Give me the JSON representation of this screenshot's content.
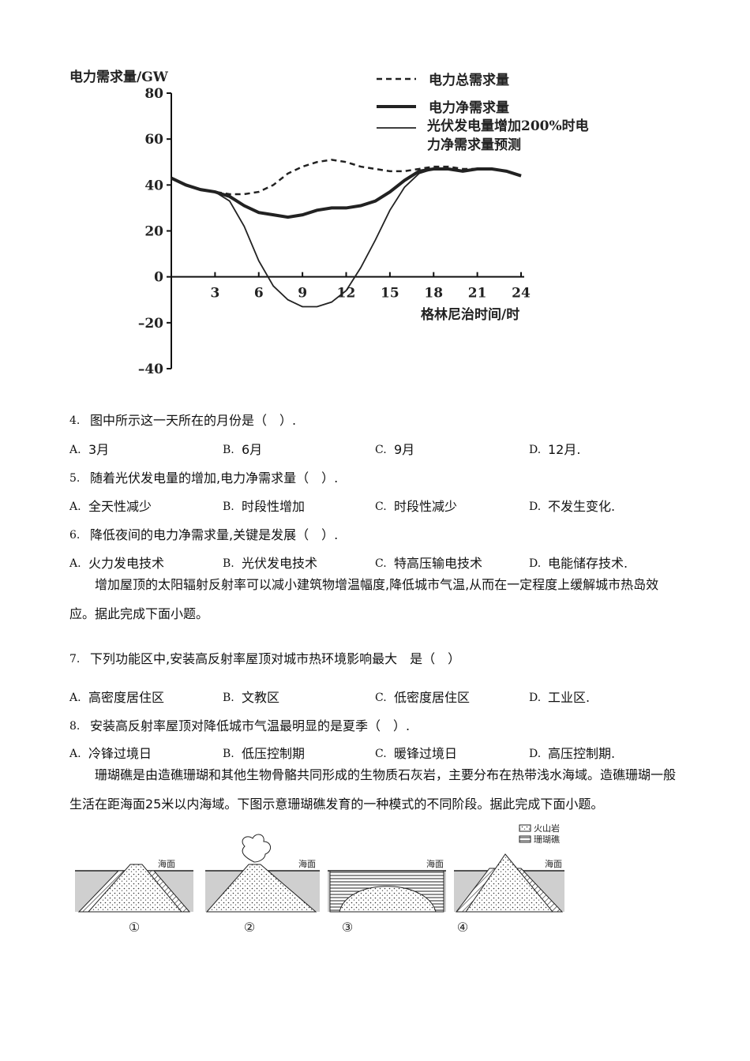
{
  "chart_data": {
    "type": "line",
    "y_label": "电力需求量/GW",
    "x_label": "格林尼治时间/时",
    "x": [
      0,
      1,
      2,
      3,
      4,
      5,
      6,
      7,
      8,
      9,
      10,
      11,
      12,
      13,
      14,
      15,
      16,
      17,
      18,
      19,
      20,
      21,
      22,
      23,
      24
    ],
    "xlim": [
      0,
      24
    ],
    "xticks": [
      3,
      6,
      9,
      12,
      15,
      18,
      21,
      24
    ],
    "ylim": [
      -40,
      80
    ],
    "yticks": [
      80,
      60,
      40,
      20,
      0,
      {
        "value": -20,
        "label": "–20"
      },
      {
        "value": -40,
        "label": "–40"
      }
    ],
    "series": [
      {
        "name": "电力总需求量",
        "color": "#222222",
        "style": "dashed",
        "values": [
          43,
          40,
          38,
          37,
          36,
          36,
          37,
          40,
          45,
          48,
          50,
          51,
          50,
          48,
          47,
          46,
          46,
          47,
          48,
          48,
          47,
          47,
          47,
          46,
          44
        ]
      },
      {
        "name": "电力净需求量",
        "color": "#222222",
        "style": "thick",
        "values": [
          43,
          40,
          38,
          37,
          35,
          31,
          28,
          27,
          26,
          27,
          29,
          30,
          30,
          31,
          33,
          37,
          42,
          46,
          47,
          47,
          46,
          47,
          47,
          46,
          44
        ]
      },
      {
        "name": "光伏发电量增加200%时电力净需求量预测",
        "color": "#222222",
        "style": "thin",
        "values": [
          43,
          40,
          38,
          37,
          33,
          22,
          7,
          -4,
          -10,
          -13,
          -13,
          -11,
          -6,
          4,
          16,
          29,
          39,
          45,
          47,
          47,
          46,
          47,
          47,
          46,
          44
        ]
      }
    ]
  },
  "questions": [
    {
      "number": "4.",
      "stem": "图中所示这一天所在的月份是（　）.",
      "options": [
        {
          "letter": "A.",
          "text": "3月"
        },
        {
          "letter": "B.",
          "text": "6月"
        },
        {
          "letter": "C.",
          "text": "9月"
        },
        {
          "letter": "D.",
          "text": "12月."
        }
      ]
    },
    {
      "number": "5.",
      "stem": "随着光伏发电量的增加,电力净需求量（　）.",
      "options": [
        {
          "letter": "A.",
          "text": "全天性减少"
        },
        {
          "letter": "B.",
          "text": "时段性增加"
        },
        {
          "letter": "C.",
          "text": "时段性减少"
        },
        {
          "letter": "D.",
          "text": "不发生变化."
        }
      ]
    },
    {
      "number": "6.",
      "stem": "降低夜间的电力净需求量,关键是发展（　）.",
      "options": [
        {
          "letter": "A.",
          "text": "火力发电技术"
        },
        {
          "letter": "B.",
          "text": "光伏发电技术"
        },
        {
          "letter": "C.",
          "text": "特高压输电技术"
        },
        {
          "letter": "D.",
          "text": "电能储存技术."
        }
      ]
    },
    {
      "number": "7.",
      "stem": "下列功能区中,安装高反射率屋顶对城市热环境影响最大　是（　）",
      "options": [
        {
          "letter": "A.",
          "text": "高密度居住区"
        },
        {
          "letter": "B.",
          "text": "文教区"
        },
        {
          "letter": "C.",
          "text": "低密度居住区"
        },
        {
          "letter": "D.",
          "text": "工业区."
        }
      ]
    },
    {
      "number": "8.",
      "stem": "安装高反射率屋顶对降低城市气温最明显的是夏季（　）.",
      "options": [
        {
          "letter": "A.",
          "text": "冷锋过境日"
        },
        {
          "letter": "B.",
          "text": "低压控制期"
        },
        {
          "letter": "C.",
          "text": "暖锋过境日"
        },
        {
          "letter": "D.",
          "text": "高压控制期."
        }
      ]
    }
  ],
  "passages": [
    "增加屋顶的太阳辐射反射率可以减小建筑物增温幅度,降低城市气温,从而在一定程度上缓解城市热岛效应。据此完成下面小题。",
    "珊瑚礁是由造礁珊瑚和其他生物骨骼共同形成的生物质石灰岩，主要分布在热带浅水海域。造礁珊瑚一般生活在距海面25米以内海域。下图示意珊瑚礁发育的一种模式的不同阶段。据此完成下面小题。"
  ],
  "figure": {
    "legend": [
      "火山岩",
      "珊瑚礁"
    ],
    "sea_label": "海面",
    "panels": [
      "①",
      "②",
      "③",
      "④"
    ]
  }
}
